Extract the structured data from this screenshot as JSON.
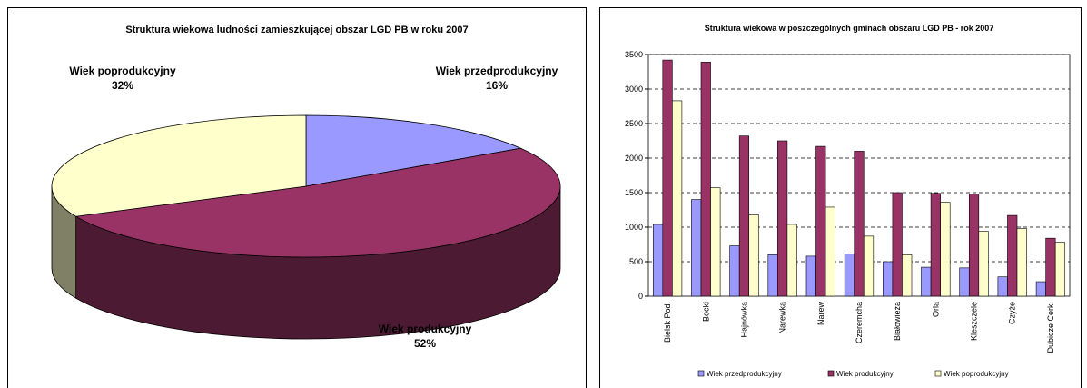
{
  "chart_data": [
    {
      "type": "pie",
      "title": "Struktura wiekowa ludności zamieszkującej obszar LGD PB w roku 2007",
      "categories": [
        "Wiek przedprodukcyjny",
        "Wiek produkcyjny",
        "Wiek poprodukcyjny"
      ],
      "values": [
        16,
        52,
        32
      ],
      "value_labels": [
        "16%",
        "52%",
        "32%"
      ],
      "colors": [
        "#9999ff",
        "#993366",
        "#ffffcc"
      ]
    },
    {
      "type": "bar",
      "title": "Struktura wiekowa w poszczególnych gminach obszaru LGD PB - rok 2007",
      "categories": [
        "Bielsk Pod.",
        "Bocki",
        "Hajnówka",
        "Narewka",
        "Narew",
        "Czeremcha",
        "Białowieża",
        "Orla",
        "Kleszczele",
        "Czyże",
        "Dubicze Cerk."
      ],
      "series": [
        {
          "name": "Wiek przedprodukcyjny",
          "color": "#9999ff",
          "values": [
            1040,
            1400,
            730,
            600,
            580,
            610,
            500,
            420,
            410,
            280,
            210
          ]
        },
        {
          "name": "Wiek produkcyjny",
          "color": "#993366",
          "values": [
            3420,
            3390,
            2320,
            2250,
            2170,
            2100,
            1500,
            1490,
            1480,
            1170,
            840
          ]
        },
        {
          "name": "Wiek poprodukcyjny",
          "color": "#ffffcc",
          "values": [
            2830,
            1570,
            1180,
            1040,
            1290,
            870,
            600,
            1360,
            940,
            980,
            780
          ]
        }
      ],
      "ylim": [
        0,
        3500
      ],
      "yticks": [
        0,
        500,
        1000,
        1500,
        2000,
        2500,
        3000,
        3500
      ],
      "grid": true,
      "legend": "bottom"
    }
  ]
}
